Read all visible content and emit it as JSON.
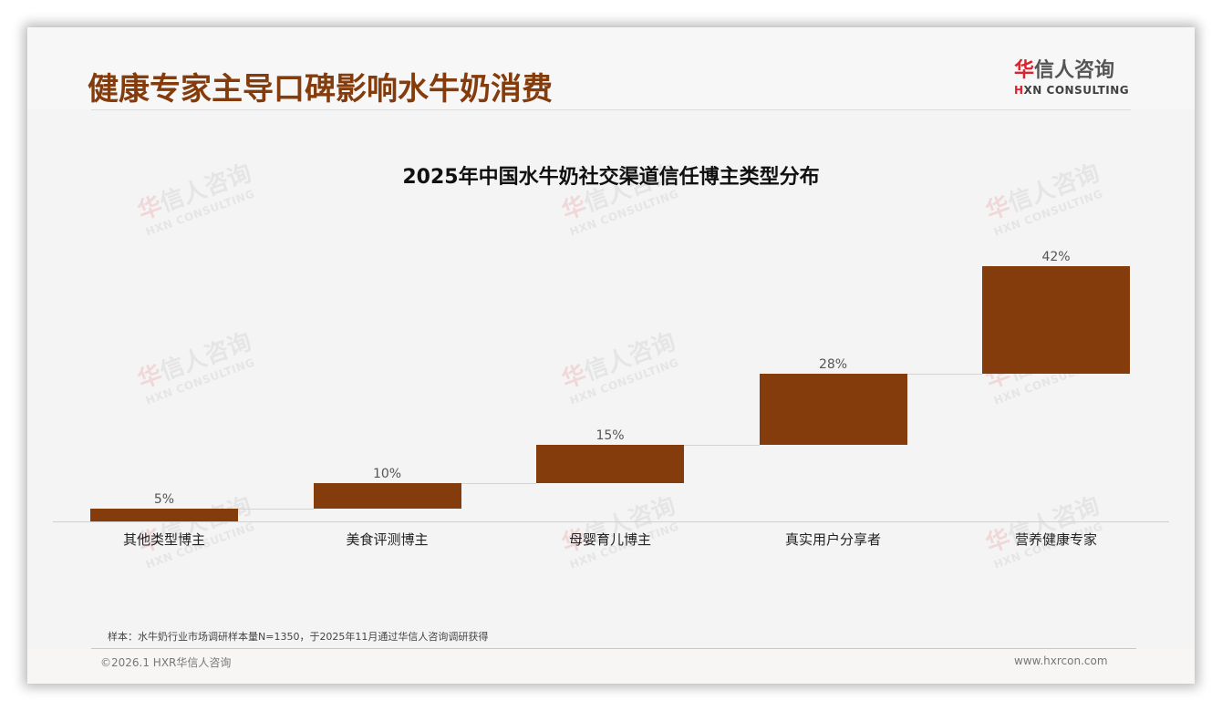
{
  "header": {
    "title": "健康专家主导口碑影响水牛奶消费",
    "logo": {
      "cn_first": "华",
      "cn_rest": "信人咨询",
      "en_first": "H",
      "en_rest": "XN CONSULTING"
    }
  },
  "watermark": {
    "cn_first": "华",
    "cn_rest": "信人咨询",
    "en": "HXN CONSULTING"
  },
  "chart_data": {
    "type": "waterfall",
    "title": "2025年中国水牛奶社交渠道信任博主类型分布",
    "categories": [
      "其他类型博主",
      "美食评测博主",
      "母婴育儿博主",
      "真实用户分享者",
      "营养健康专家"
    ],
    "values": [
      5,
      10,
      15,
      28,
      42
    ],
    "value_labels": [
      "5%",
      "10%",
      "15%",
      "28%",
      "42%"
    ],
    "cumulative_end": [
      5,
      15,
      30,
      58,
      100
    ],
    "unit": "%",
    "xlabel": "",
    "ylabel": "",
    "ylim": [
      0,
      100
    ],
    "grid": false,
    "legend": null,
    "bar_color": "#843c0c"
  },
  "footer": {
    "source_note": "样本：水牛奶行业市场调研样本量N=1350，于2025年11月通过华信人咨询调研获得",
    "copyright": "©2026.1 HXR华信人咨询",
    "website": "www.hxrcon.com"
  },
  "colors": {
    "accent": "#843c0c",
    "logo_red": "#d9232d",
    "background": "#f4f4f4"
  }
}
